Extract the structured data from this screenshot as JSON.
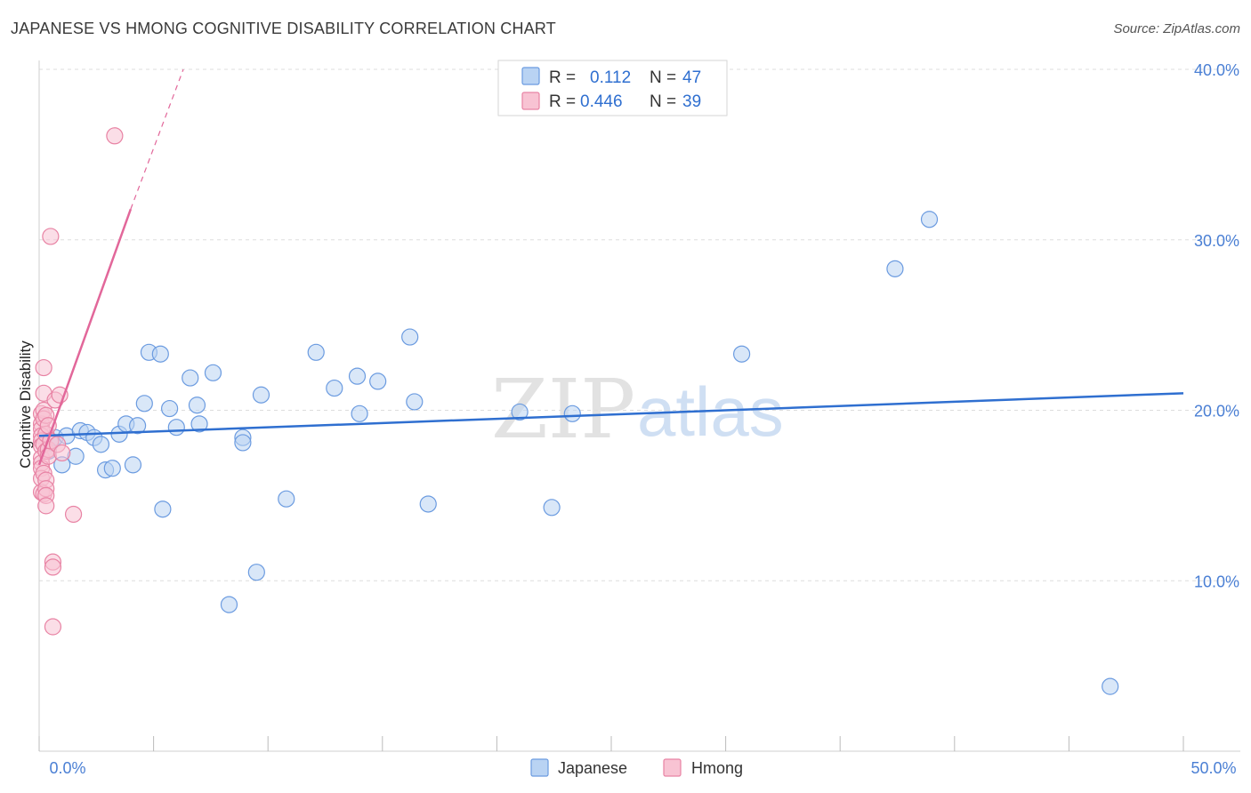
{
  "header": {
    "title": "JAPANESE VS HMONG COGNITIVE DISABILITY CORRELATION CHART",
    "source": "Source: ZipAtlas.com"
  },
  "colors": {
    "japanese_fill": "#b9d3f3",
    "japanese_stroke": "#6b9be0",
    "japanese_line": "#2f6fd0",
    "hmong_fill": "#f8c3d3",
    "hmong_stroke": "#e883a4",
    "hmong_line": "#e2679a",
    "value_text": "#4a7fd4"
  },
  "legend": {
    "rows": [
      {
        "r_label": "R =",
        "r_value": "0.112",
        "n_label": "N =",
        "n_value": "47"
      },
      {
        "r_label": "R =",
        "r_value": "0.446",
        "n_label": "N =",
        "n_value": "39"
      }
    ]
  },
  "watermark": {
    "zip": "ZIP",
    "atlas": "atlas"
  },
  "chart_data": {
    "type": "scatter",
    "title": "JAPANESE VS HMONG COGNITIVE DISABILITY CORRELATION CHART",
    "xlabel": "",
    "ylabel": "Cognitive Disability",
    "xlim": [
      0,
      50
    ],
    "ylim": [
      0,
      40
    ],
    "x_tick_labels": [
      "0.0%",
      "50.0%"
    ],
    "y_ticks": [
      10,
      20,
      30,
      40
    ],
    "y_tick_labels": [
      "10.0%",
      "20.0%",
      "30.0%",
      "40.0%"
    ],
    "grid": true,
    "legend_position": "top-center",
    "series": [
      {
        "name": "Japanese",
        "R": 0.112,
        "N": 47,
        "trend": {
          "x0": 0,
          "y0": 18.5,
          "x1": 50,
          "y1": 21.0
        },
        "points": [
          [
            0.4,
            17.6
          ],
          [
            0.5,
            18.1
          ],
          [
            0.7,
            18.4
          ],
          [
            1.0,
            16.8
          ],
          [
            1.2,
            18.5
          ],
          [
            1.6,
            17.3
          ],
          [
            1.8,
            18.8
          ],
          [
            2.1,
            18.7
          ],
          [
            2.4,
            18.4
          ],
          [
            2.7,
            18.0
          ],
          [
            2.9,
            16.5
          ],
          [
            3.2,
            16.6
          ],
          [
            3.5,
            18.6
          ],
          [
            3.8,
            19.2
          ],
          [
            4.1,
            16.8
          ],
          [
            4.3,
            19.1
          ],
          [
            4.6,
            20.4
          ],
          [
            4.8,
            23.4
          ],
          [
            5.3,
            23.3
          ],
          [
            5.4,
            14.2
          ],
          [
            5.7,
            20.1
          ],
          [
            6.0,
            19.0
          ],
          [
            6.6,
            21.9
          ],
          [
            6.9,
            20.3
          ],
          [
            7.0,
            19.2
          ],
          [
            7.6,
            22.2
          ],
          [
            8.3,
            8.6
          ],
          [
            8.9,
            18.4
          ],
          [
            8.9,
            18.1
          ],
          [
            9.5,
            10.5
          ],
          [
            9.7,
            20.9
          ],
          [
            10.8,
            14.8
          ],
          [
            12.1,
            23.4
          ],
          [
            12.9,
            21.3
          ],
          [
            13.9,
            22.0
          ],
          [
            14.0,
            19.8
          ],
          [
            14.8,
            21.7
          ],
          [
            16.2,
            24.3
          ],
          [
            16.4,
            20.5
          ],
          [
            17.0,
            14.5
          ],
          [
            21.0,
            19.9
          ],
          [
            22.4,
            14.3
          ],
          [
            23.3,
            19.8
          ],
          [
            30.7,
            23.3
          ],
          [
            37.4,
            28.3
          ],
          [
            38.9,
            31.2
          ],
          [
            46.8,
            3.8
          ]
        ]
      },
      {
        "name": "Hmong",
        "R": 0.446,
        "N": 39,
        "trend": {
          "x0": 0,
          "y0": 16.8,
          "x1": 4.0,
          "y1": 31.8,
          "dash_to": {
            "x": 6.3,
            "y": 40.0
          }
        },
        "points": [
          [
            0.1,
            19.8
          ],
          [
            0.1,
            19.2
          ],
          [
            0.1,
            18.9
          ],
          [
            0.1,
            18.5
          ],
          [
            0.1,
            18.2
          ],
          [
            0.1,
            17.9
          ],
          [
            0.1,
            17.2
          ],
          [
            0.1,
            16.9
          ],
          [
            0.1,
            16.6
          ],
          [
            0.1,
            16.0
          ],
          [
            0.1,
            15.2
          ],
          [
            0.2,
            22.5
          ],
          [
            0.2,
            21.0
          ],
          [
            0.2,
            20.0
          ],
          [
            0.2,
            19.5
          ],
          [
            0.2,
            18.0
          ],
          [
            0.2,
            16.3
          ],
          [
            0.2,
            15.1
          ],
          [
            0.3,
            19.7
          ],
          [
            0.3,
            18.6
          ],
          [
            0.3,
            17.6
          ],
          [
            0.3,
            15.9
          ],
          [
            0.3,
            15.4
          ],
          [
            0.3,
            15.0
          ],
          [
            0.3,
            14.4
          ],
          [
            0.4,
            19.1
          ],
          [
            0.4,
            17.7
          ],
          [
            0.4,
            17.3
          ],
          [
            0.5,
            30.2
          ],
          [
            0.5,
            18.2
          ],
          [
            0.6,
            11.1
          ],
          [
            0.6,
            10.8
          ],
          [
            0.6,
            7.3
          ],
          [
            0.7,
            20.6
          ],
          [
            0.8,
            18.0
          ],
          [
            0.9,
            20.9
          ],
          [
            1.0,
            17.5
          ],
          [
            1.5,
            13.9
          ],
          [
            3.3,
            36.1
          ]
        ]
      }
    ]
  },
  "bottom_legend": {
    "items": [
      "Japanese",
      "Hmong"
    ]
  }
}
